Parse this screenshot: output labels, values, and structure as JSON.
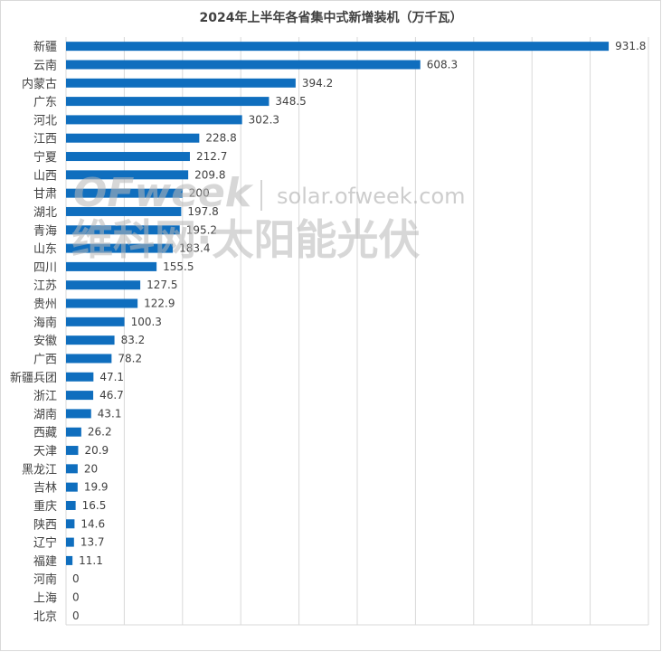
{
  "chart_data": {
    "type": "bar",
    "orientation": "horizontal",
    "title": "2024年上半年各省集中式新增装机（万千瓦）",
    "categories": [
      "新疆",
      "云南",
      "内蒙古",
      "广东",
      "河北",
      "江西",
      "宁夏",
      "山西",
      "甘肃",
      "湖北",
      "青海",
      "山东",
      "四川",
      "江苏",
      "贵州",
      "海南",
      "安徽",
      "广西",
      "新疆兵团",
      "浙江",
      "湖南",
      "西藏",
      "天津",
      "黑龙江",
      "吉林",
      "重庆",
      "陕西",
      "辽宁",
      "福建",
      "河南",
      "上海",
      "北京"
    ],
    "values": [
      931.8,
      608.3,
      394.2,
      348.5,
      302.3,
      228.8,
      212.7,
      209.8,
      200,
      197.8,
      195.2,
      183.4,
      155.5,
      127.5,
      122.9,
      100.3,
      83.2,
      78.2,
      47.1,
      46.7,
      43.1,
      26.2,
      20.9,
      20,
      19.9,
      16.5,
      14.6,
      13.7,
      11.1,
      0,
      0,
      0
    ],
    "value_labels": [
      "931.8",
      "608.3",
      "394.2",
      "348.5",
      "302.3",
      "228.8",
      "212.7",
      "209.8",
      "200",
      "197.8",
      "195.2",
      "183.4",
      "155.5",
      "127.5",
      "122.9",
      "100.3",
      "83.2",
      "78.2",
      "47.1",
      "46.7",
      "43.1",
      "26.2",
      "20.9",
      "20",
      "19.9",
      "16.5",
      "14.6",
      "13.7",
      "11.1",
      "0",
      "0",
      "0"
    ],
    "xlim": [
      0,
      1000
    ],
    "grid": true,
    "bar_color": "#0F6EBE",
    "grid_color": "#d9d9d9"
  },
  "watermark": {
    "logo": "OFweek",
    "url": "solar.ofweek.com",
    "name": "维科网·太阳能光伏"
  }
}
